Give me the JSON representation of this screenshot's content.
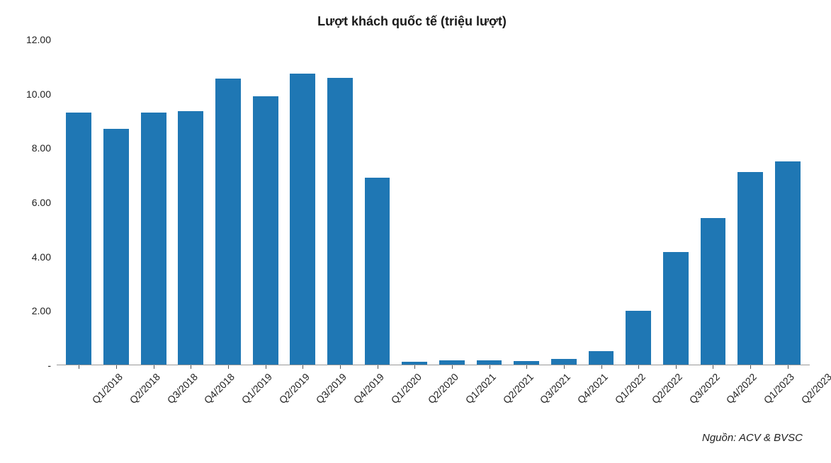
{
  "chart": {
    "type": "bar",
    "title": "Lượt khách quốc tế (triệu lượt)",
    "title_fontsize": 18,
    "title_color": "#1a1a1a",
    "label_fontsize": 14,
    "tick_fontsize": 14,
    "tick_color": "#222222",
    "bar_color": "#1f77b4",
    "background_color": "#ffffff",
    "axis_line_color": "#666666",
    "ylim": [
      0,
      12
    ],
    "yticks": [
      "12.00",
      "10.00",
      "8.00",
      "6.00",
      "4.00",
      "2.00",
      "-"
    ],
    "categories": [
      "Q1/2018",
      "Q2/2018",
      "Q3/2018",
      "Q4/2018",
      "Q1/2019",
      "Q2/2019",
      "Q3/2019",
      "Q4/2019",
      "Q1/2020",
      "Q2/2020",
      "Q1/2021",
      "Q2/2021",
      "Q3/2021",
      "Q4/2021",
      "Q1/2022",
      "Q2/2022",
      "Q3/2022",
      "Q4/2022",
      "Q1/2023",
      "Q2/2023"
    ],
    "values": [
      9.3,
      8.7,
      9.3,
      9.35,
      10.55,
      9.9,
      10.75,
      10.6,
      6.9,
      0.1,
      0.15,
      0.15,
      0.12,
      0.2,
      0.5,
      2.0,
      4.15,
      5.4,
      7.1,
      7.5
    ],
    "bar_width": 0.68,
    "source_label": "Nguồn: ACV & BVSC",
    "source_fontsize": 15,
    "source_color": "#222222"
  }
}
